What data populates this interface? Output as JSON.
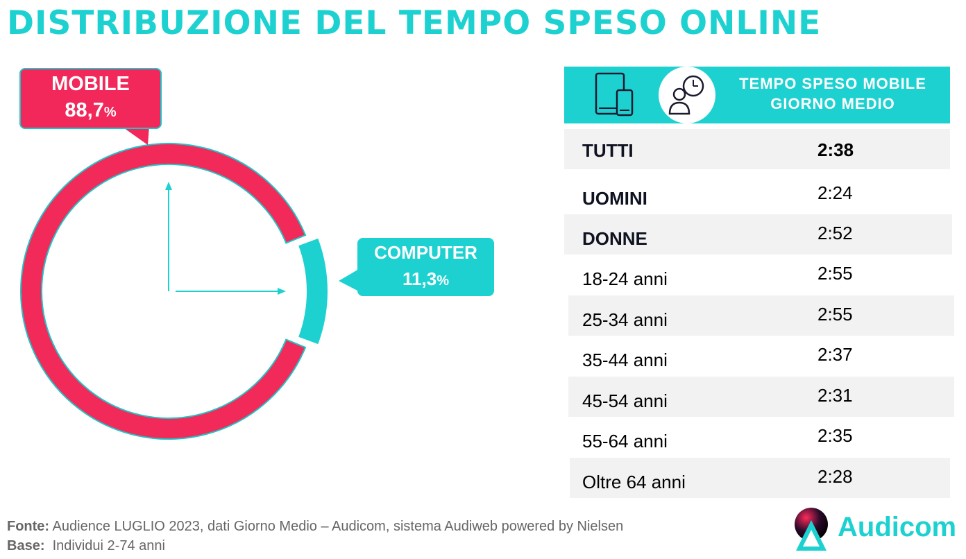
{
  "title": "DISTRIBUZIONE DEL TEMPO SPESO ONLINE",
  "chart_data": {
    "type": "pie",
    "subtype": "donut",
    "slices": [
      {
        "label": "MOBILE",
        "value": 88.7,
        "display": "88,7",
        "color": "#f22a5a"
      },
      {
        "label": "COMPUTER",
        "value": 11.3,
        "display": "11,3",
        "color": "#1ed1d1"
      }
    ],
    "unit": "%"
  },
  "table": {
    "header": [
      "TEMPO SPESO MOBILE",
      "GIORNO MEDIO"
    ],
    "icons": [
      "tablet-phone-icon",
      "person-clock-icon"
    ],
    "rows": [
      {
        "label": "TUTTI",
        "value": "2:38"
      },
      {
        "label": "UOMINI",
        "value": "2:24"
      },
      {
        "label": "DONNE",
        "value": "2:52"
      },
      {
        "label": "18-24 anni",
        "value": "2:55"
      },
      {
        "label": "25-34 anni",
        "value": "2:55"
      },
      {
        "label": "35-44 anni",
        "value": "2:37"
      },
      {
        "label": "45-54 anni",
        "value": "2:31"
      },
      {
        "label": "55-64 anni",
        "value": "2:35"
      },
      {
        "label": "Oltre 64 anni",
        "value": "2:28"
      }
    ]
  },
  "footer": {
    "source_label": "Fonte:",
    "source_text": " Audience LUGLIO 2023, dati Giorno Medio – Audicom, sistema Audiweb powered by Nielsen",
    "base_label": "Base:",
    "base_text": "  Individui 2-74 anni"
  },
  "logo": {
    "text": "Audicom"
  },
  "colors": {
    "accent": "#1ed1d1",
    "mobile": "#f22a5a",
    "shade": "#f2f2f2"
  }
}
